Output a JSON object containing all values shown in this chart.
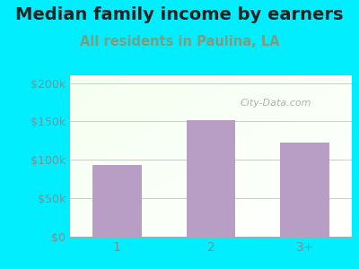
{
  "title": "Median family income by earners",
  "subtitle": "All residents in Paulina, LA",
  "categories": [
    "1",
    "2",
    "3+"
  ],
  "values": [
    93000,
    152000,
    122000
  ],
  "bar_color": "#b89ec4",
  "title_fontsize": 14,
  "subtitle_fontsize": 10.5,
  "subtitle_color": "#7a9e7e",
  "tick_color": "#8a8a8a",
  "bg_outer": "#00eeff",
  "ylim": [
    0,
    210000
  ],
  "yticks": [
    0,
    50000,
    100000,
    150000,
    200000
  ],
  "ytick_labels": [
    "$0",
    "$50k",
    "$100k",
    "$150k",
    "$200k"
  ],
  "watermark": "City-Data.com",
  "grid_color": "#cccccc"
}
